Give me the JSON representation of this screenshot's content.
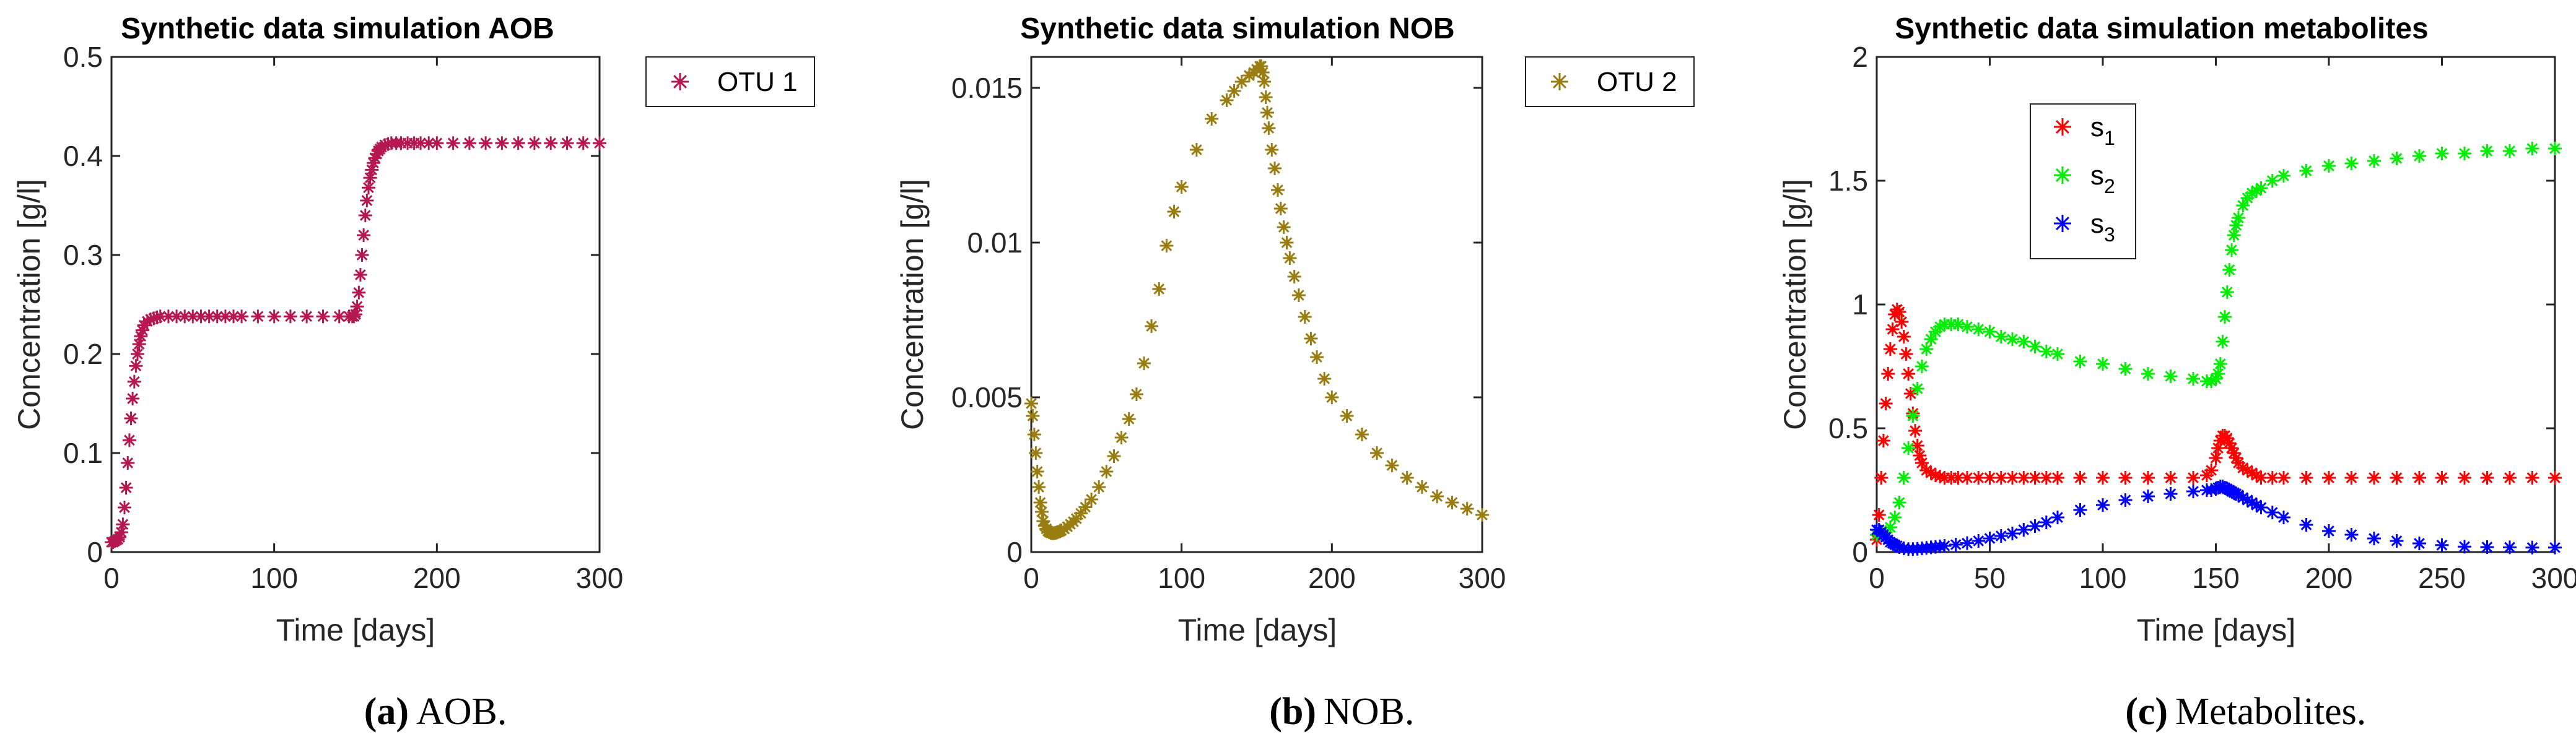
{
  "chart_data": [
    {
      "type": "scatter",
      "id": "a",
      "title": "Synthetic data simulation AOB",
      "xlabel": "Time [days]",
      "ylabel": "Concentration [g/l]",
      "xlim": [
        0,
        300
      ],
      "ylim": [
        0,
        0.5
      ],
      "xticks": [
        0,
        100,
        200,
        300
      ],
      "yticks": [
        0,
        0.1,
        0.2,
        0.3,
        0.4,
        0.5
      ],
      "ytick_labels": [
        "0",
        "0.1",
        "0.2",
        "0.3",
        "0.4",
        "0.5"
      ],
      "legend": "outside-right",
      "caption_label": "(a)",
      "caption_text": "AOB.",
      "series": [
        {
          "name": "OTU 1",
          "color": "#b5184f",
          "x": [
            0,
            1,
            2,
            3,
            4,
            5,
            6,
            7,
            8,
            9,
            10,
            11,
            12,
            13,
            14,
            15,
            16,
            17,
            18,
            19,
            20,
            22,
            24,
            26,
            28,
            30,
            35,
            40,
            45,
            50,
            55,
            60,
            65,
            70,
            75,
            80,
            90,
            100,
            110,
            120,
            130,
            140,
            146,
            148,
            149,
            150,
            151,
            152,
            153,
            154,
            155,
            156,
            157,
            158,
            159,
            160,
            161,
            162,
            163,
            164,
            165,
            166,
            168,
            170,
            172,
            175,
            178,
            182,
            186,
            190,
            195,
            200,
            210,
            220,
            230,
            240,
            250,
            260,
            270,
            280,
            290,
            300
          ],
          "y": [
            0.01,
            0.01,
            0.011,
            0.012,
            0.013,
            0.015,
            0.02,
            0.028,
            0.045,
            0.065,
            0.09,
            0.113,
            0.135,
            0.155,
            0.172,
            0.188,
            0.2,
            0.21,
            0.218,
            0.224,
            0.229,
            0.233,
            0.235,
            0.236,
            0.237,
            0.238,
            0.238,
            0.238,
            0.238,
            0.238,
            0.238,
            0.238,
            0.238,
            0.238,
            0.238,
            0.238,
            0.238,
            0.238,
            0.238,
            0.238,
            0.238,
            0.238,
            0.238,
            0.238,
            0.238,
            0.24,
            0.248,
            0.262,
            0.28,
            0.3,
            0.32,
            0.34,
            0.355,
            0.368,
            0.378,
            0.386,
            0.393,
            0.398,
            0.402,
            0.405,
            0.407,
            0.409,
            0.411,
            0.412,
            0.413,
            0.413,
            0.413,
            0.413,
            0.413,
            0.413,
            0.413,
            0.413,
            0.413,
            0.413,
            0.413,
            0.413,
            0.413,
            0.413,
            0.413,
            0.413,
            0.413,
            0.413
          ]
        }
      ]
    },
    {
      "type": "scatter",
      "id": "b",
      "title": "Synthetic data simulation NOB",
      "xlabel": "Time [days]",
      "ylabel": "Concentration [g/l]",
      "xlim": [
        0,
        300
      ],
      "ylim": [
        0,
        0.016
      ],
      "xticks": [
        0,
        100,
        200,
        300
      ],
      "yticks": [
        0,
        0.005,
        0.01,
        0.015
      ],
      "ytick_labels": [
        "0",
        "0.005",
        "0.01",
        "0.015"
      ],
      "legend": "outside-right",
      "caption_label": "(b)",
      "caption_text": "NOB.",
      "series": [
        {
          "name": "OTU 2",
          "color": "#9a7d10",
          "x": [
            0,
            1,
            2,
            3,
            4,
            5,
            6,
            7,
            8,
            9,
            10,
            11,
            12,
            13,
            14,
            15,
            16,
            17,
            18,
            19,
            20,
            22,
            24,
            26,
            28,
            30,
            33,
            36,
            40,
            45,
            50,
            55,
            60,
            65,
            70,
            75,
            80,
            85,
            90,
            95,
            100,
            110,
            120,
            130,
            135,
            140,
            145,
            148,
            150,
            152,
            153,
            154,
            155,
            156,
            157,
            158,
            160,
            162,
            164,
            166,
            168,
            170,
            172,
            175,
            178,
            182,
            186,
            190,
            195,
            200,
            210,
            220,
            230,
            240,
            250,
            260,
            270,
            280,
            290,
            300
          ],
          "y": [
            0.0048,
            0.0044,
            0.0038,
            0.0032,
            0.0026,
            0.0021,
            0.0016,
            0.0013,
            0.001,
            0.00085,
            0.00075,
            0.00068,
            0.00064,
            0.00062,
            0.00061,
            0.00061,
            0.00062,
            0.00063,
            0.00065,
            0.00067,
            0.0007,
            0.00075,
            0.00082,
            0.0009,
            0.00098,
            0.00108,
            0.00125,
            0.00145,
            0.0017,
            0.0021,
            0.0026,
            0.0031,
            0.0037,
            0.0043,
            0.0051,
            0.0061,
            0.0073,
            0.0085,
            0.0099,
            0.011,
            0.0118,
            0.013,
            0.014,
            0.0146,
            0.0149,
            0.0152,
            0.0154,
            0.0155,
            0.0156,
            0.0157,
            0.0157,
            0.0155,
            0.0152,
            0.0147,
            0.0142,
            0.0137,
            0.013,
            0.0124,
            0.0117,
            0.0111,
            0.0105,
            0.01,
            0.0095,
            0.0089,
            0.0083,
            0.0076,
            0.0069,
            0.0063,
            0.0056,
            0.005,
            0.0044,
            0.0038,
            0.0032,
            0.0028,
            0.0024,
            0.0021,
            0.0018,
            0.0016,
            0.0014,
            0.0012
          ]
        }
      ]
    },
    {
      "type": "scatter",
      "id": "c",
      "title": "Synthetic data simulation metabolites",
      "xlabel": "Time [days]",
      "ylabel": "Concentration [g/l]",
      "xlim": [
        0,
        300
      ],
      "ylim": [
        0,
        2
      ],
      "xticks": [
        0,
        50,
        100,
        150,
        200,
        250,
        300
      ],
      "yticks": [
        0,
        0.5,
        1,
        1.5,
        2
      ],
      "ytick_labels": [
        "0",
        "0.5",
        "1",
        "1.5",
        "2"
      ],
      "legend": "top-left",
      "caption_label": "(c)",
      "caption_text": "Metabolites.",
      "series": [
        {
          "name": "s",
          "subscript": "1",
          "color": "#ff0000",
          "x": [
            0,
            1,
            2,
            3,
            4,
            5,
            6,
            7,
            8,
            9,
            10,
            11,
            12,
            13,
            14,
            15,
            16,
            17,
            18,
            19,
            20,
            22,
            24,
            26,
            28,
            30,
            33,
            36,
            40,
            45,
            50,
            55,
            60,
            65,
            70,
            75,
            80,
            90,
            100,
            110,
            120,
            130,
            140,
            146,
            148,
            150,
            151,
            152,
            153,
            154,
            155,
            156,
            157,
            158,
            159,
            160,
            162,
            164,
            166,
            168,
            170,
            175,
            180,
            190,
            200,
            210,
            220,
            230,
            240,
            250,
            260,
            270,
            280,
            290,
            300
          ],
          "y": [
            0.05,
            0.15,
            0.3,
            0.45,
            0.6,
            0.72,
            0.82,
            0.9,
            0.96,
            0.98,
            0.97,
            0.93,
            0.87,
            0.8,
            0.72,
            0.64,
            0.56,
            0.49,
            0.43,
            0.39,
            0.36,
            0.33,
            0.32,
            0.31,
            0.305,
            0.3,
            0.3,
            0.3,
            0.3,
            0.3,
            0.3,
            0.3,
            0.3,
            0.3,
            0.3,
            0.3,
            0.3,
            0.3,
            0.3,
            0.3,
            0.3,
            0.3,
            0.3,
            0.31,
            0.33,
            0.38,
            0.42,
            0.45,
            0.47,
            0.47,
            0.46,
            0.44,
            0.42,
            0.4,
            0.38,
            0.36,
            0.34,
            0.33,
            0.32,
            0.31,
            0.3,
            0.3,
            0.3,
            0.3,
            0.3,
            0.3,
            0.3,
            0.3,
            0.3,
            0.3,
            0.3,
            0.3,
            0.3,
            0.3,
            0.3
          ]
        },
        {
          "name": "s",
          "subscript": "2",
          "color": "#00ee00",
          "x": [
            0,
            2,
            4,
            6,
            8,
            10,
            12,
            14,
            16,
            18,
            20,
            22,
            24,
            26,
            28,
            30,
            33,
            36,
            40,
            45,
            50,
            55,
            60,
            65,
            70,
            75,
            80,
            90,
            100,
            110,
            120,
            130,
            140,
            146,
            148,
            150,
            151,
            152,
            153,
            154,
            155,
            156,
            157,
            158,
            159,
            160,
            162,
            164,
            166,
            168,
            170,
            175,
            180,
            190,
            200,
            210,
            220,
            230,
            240,
            250,
            260,
            270,
            280,
            290,
            300
          ],
          "y": [
            0.07,
            0.07,
            0.08,
            0.1,
            0.14,
            0.2,
            0.3,
            0.42,
            0.55,
            0.66,
            0.75,
            0.82,
            0.86,
            0.89,
            0.91,
            0.92,
            0.92,
            0.92,
            0.91,
            0.9,
            0.89,
            0.87,
            0.86,
            0.85,
            0.83,
            0.81,
            0.8,
            0.77,
            0.76,
            0.74,
            0.72,
            0.71,
            0.7,
            0.69,
            0.69,
            0.7,
            0.72,
            0.76,
            0.85,
            0.95,
            1.05,
            1.14,
            1.22,
            1.28,
            1.32,
            1.35,
            1.4,
            1.43,
            1.45,
            1.46,
            1.47,
            1.5,
            1.52,
            1.54,
            1.56,
            1.57,
            1.58,
            1.59,
            1.6,
            1.61,
            1.61,
            1.62,
            1.62,
            1.63,
            1.63
          ]
        },
        {
          "name": "s",
          "subscript": "3",
          "color": "#0000ff",
          "x": [
            0,
            1,
            2,
            3,
            4,
            5,
            6,
            7,
            8,
            9,
            10,
            12,
            14,
            16,
            18,
            20,
            22,
            24,
            26,
            28,
            30,
            35,
            40,
            45,
            50,
            55,
            60,
            65,
            70,
            75,
            80,
            90,
            100,
            110,
            120,
            130,
            140,
            146,
            148,
            150,
            151,
            152,
            153,
            154,
            155,
            156,
            157,
            158,
            159,
            160,
            162,
            164,
            166,
            168,
            170,
            175,
            180,
            190,
            200,
            210,
            220,
            230,
            240,
            250,
            260,
            270,
            280,
            290,
            300
          ],
          "y": [
            0.09,
            0.09,
            0.08,
            0.07,
            0.06,
            0.05,
            0.04,
            0.035,
            0.03,
            0.025,
            0.02,
            0.015,
            0.012,
            0.012,
            0.013,
            0.015,
            0.017,
            0.019,
            0.021,
            0.023,
            0.025,
            0.03,
            0.036,
            0.045,
            0.055,
            0.065,
            0.075,
            0.09,
            0.105,
            0.12,
            0.14,
            0.17,
            0.19,
            0.21,
            0.225,
            0.235,
            0.245,
            0.25,
            0.25,
            0.255,
            0.26,
            0.265,
            0.265,
            0.26,
            0.255,
            0.25,
            0.245,
            0.24,
            0.235,
            0.23,
            0.22,
            0.21,
            0.2,
            0.19,
            0.18,
            0.16,
            0.14,
            0.11,
            0.085,
            0.07,
            0.055,
            0.045,
            0.035,
            0.028,
            0.022,
            0.02,
            0.019,
            0.018,
            0.018
          ]
        }
      ]
    }
  ]
}
